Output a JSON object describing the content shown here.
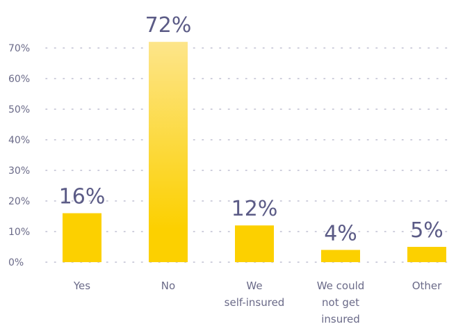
{
  "chart_data": {
    "type": "bar",
    "categories": [
      "Yes",
      "No",
      "We self-insured",
      "We could not get insured",
      "Other"
    ],
    "category_lines": [
      [
        "Yes"
      ],
      [
        "No"
      ],
      [
        "We",
        "self-insured"
      ],
      [
        "We could",
        "not get",
        "insured"
      ],
      [
        "Other"
      ]
    ],
    "values": [
      16,
      72,
      12,
      4,
      5
    ],
    "value_labels": [
      "16%",
      "72%",
      "12%",
      "4%",
      "5%"
    ],
    "y_ticks": [
      "0%",
      "10%",
      "20%",
      "30%",
      "40%",
      "50%",
      "60%",
      "70%"
    ],
    "ylim": [
      0,
      72
    ],
    "title": "",
    "xlabel": "",
    "ylabel": "",
    "grid": true,
    "legend": "none",
    "colors": {
      "bar": "#fcd000",
      "bar_top": "#fde58a",
      "grid": "#bdbdd0",
      "text": "#6a6a88",
      "value_text": "#5b5b86"
    }
  }
}
